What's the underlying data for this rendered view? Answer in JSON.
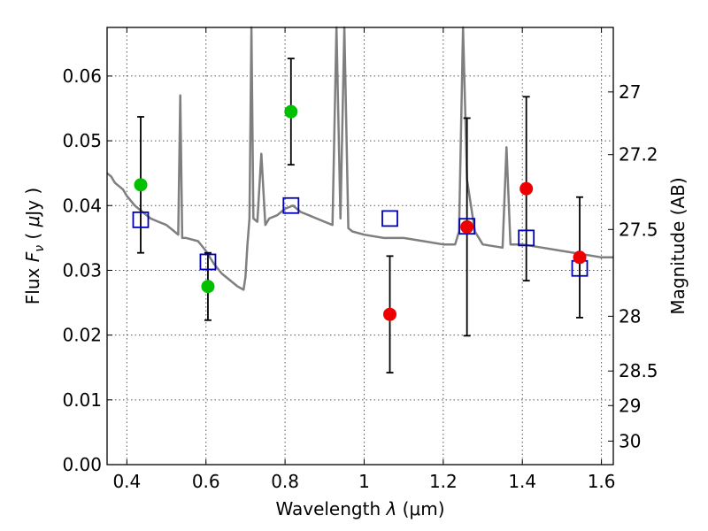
{
  "chart_data": {
    "type": "scatter",
    "xlabel": "Wavelength  λ (μm)",
    "ylabel": "Flux  F_ν  ( μJy )",
    "ylabel_parts": {
      "pre": "Flux ",
      "italic": "F",
      "sub": "ν",
      "mid": " ( ",
      "mu": "μ",
      "post": "Jy )"
    },
    "xlabel_parts": {
      "pre": "Wavelength  ",
      "italic": "λ",
      "post": " (μm)"
    },
    "y2label": "Magnitude (AB)",
    "xlim": [
      0.35,
      1.63
    ],
    "ylim": [
      0.0,
      0.0675
    ],
    "grid": true,
    "x_ticks": [
      0.4,
      0.6,
      0.8,
      1.0,
      1.2,
      1.4,
      1.6
    ],
    "x_tick_labels": [
      "0.4",
      "0.6",
      "0.8",
      "1",
      "1.2",
      "1.4",
      "1.6"
    ],
    "y_ticks": [
      0.0,
      0.01,
      0.02,
      0.03,
      0.04,
      0.05,
      0.06
    ],
    "y_tick_labels": [
      "0.00",
      "0.01",
      "0.02",
      "0.03",
      "0.04",
      "0.05",
      "0.06"
    ],
    "magnitude_ticks": [
      27,
      27.2,
      27.5,
      28,
      28.5,
      29,
      30
    ],
    "magnitude_tick_labels": [
      "27",
      "27.2",
      "27.5",
      "28",
      "28.5",
      "29",
      "30"
    ],
    "colors": {
      "spectrum": "#7f7f7f",
      "optical_points": "#00c000",
      "nir_points": "#ee0000",
      "model_boxes": "#0000bb",
      "errorbars": "#000000",
      "grid": "#555555"
    },
    "series": [
      {
        "kind": "spectrum",
        "x": [
          0.35,
          0.36,
          0.37,
          0.38,
          0.39,
          0.4,
          0.42,
          0.44,
          0.46,
          0.48,
          0.5,
          0.52,
          0.53,
          0.535,
          0.54,
          0.55,
          0.58,
          0.6,
          0.62,
          0.64,
          0.66,
          0.68,
          0.695,
          0.7,
          0.705,
          0.71,
          0.715,
          0.72,
          0.73,
          0.74,
          0.75,
          0.76,
          0.78,
          0.8,
          0.82,
          0.84,
          0.86,
          0.88,
          0.9,
          0.92,
          0.93,
          0.94,
          0.95,
          0.96,
          0.97,
          1.0,
          1.05,
          1.1,
          1.15,
          1.2,
          1.23,
          1.24,
          1.25,
          1.26,
          1.28,
          1.3,
          1.35,
          1.36,
          1.37,
          1.4,
          1.45,
          1.5,
          1.55,
          1.6,
          1.63
        ],
        "y": [
          0.045,
          0.0445,
          0.0435,
          0.043,
          0.0425,
          0.0415,
          0.04,
          0.039,
          0.038,
          0.0375,
          0.037,
          0.036,
          0.0355,
          0.057,
          0.035,
          0.035,
          0.0345,
          0.033,
          0.031,
          0.0295,
          0.0285,
          0.0275,
          0.027,
          0.029,
          0.034,
          0.038,
          0.068,
          0.038,
          0.0375,
          0.048,
          0.037,
          0.038,
          0.0385,
          0.0395,
          0.04,
          0.039,
          0.0385,
          0.038,
          0.0375,
          0.037,
          0.068,
          0.038,
          0.068,
          0.0365,
          0.036,
          0.0355,
          0.035,
          0.035,
          0.0345,
          0.034,
          0.034,
          0.036,
          0.068,
          0.044,
          0.036,
          0.034,
          0.0335,
          0.049,
          0.034,
          0.034,
          0.0335,
          0.033,
          0.0325,
          0.032,
          0.032
        ]
      },
      {
        "kind": "model_boxes",
        "x": [
          0.435,
          0.605,
          0.815,
          1.065,
          1.26,
          1.41,
          1.545
        ],
        "y": [
          0.0378,
          0.0313,
          0.04,
          0.038,
          0.0368,
          0.035,
          0.0303
        ]
      },
      {
        "kind": "optical_points",
        "x": [
          0.435,
          0.605,
          0.815
        ],
        "y": [
          0.0432,
          0.0275,
          0.0545
        ],
        "err": [
          0.0105,
          0.0052,
          0.0082
        ]
      },
      {
        "kind": "nir_points",
        "x": [
          1.065,
          1.26,
          1.41,
          1.545
        ],
        "y": [
          0.0232,
          0.0367,
          0.0426,
          0.032
        ],
        "err": [
          0.009,
          0.0168,
          0.0142,
          0.0093
        ]
      }
    ]
  }
}
